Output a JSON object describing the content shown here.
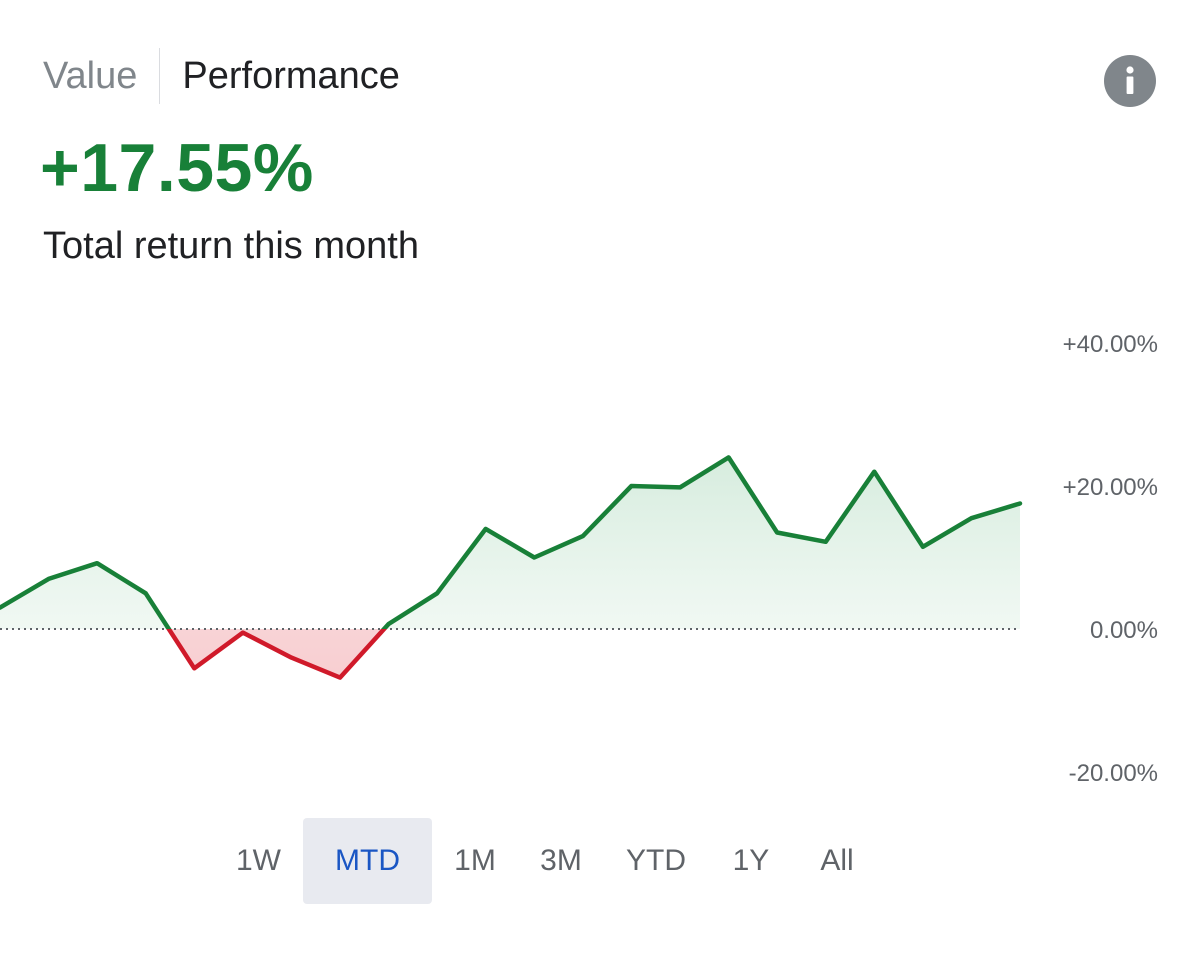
{
  "header": {
    "tabs": [
      {
        "label": "Value",
        "active": false
      },
      {
        "label": "Performance",
        "active": true
      }
    ],
    "info_icon": "info-icon"
  },
  "summary": {
    "return_value": "+17.55%",
    "caption": "Total return this month"
  },
  "colors": {
    "positive": "#188038",
    "negative": "#d01a2a",
    "positive_fill": "#e6f4ea",
    "negative_fill": "#fce8e6",
    "zero_line": "#5f6368",
    "selected_range": "#1a56c4"
  },
  "chart_data": {
    "type": "area",
    "x": [
      0,
      1,
      2,
      3,
      4,
      5,
      6,
      7,
      8,
      9,
      10,
      11,
      12,
      13,
      14,
      15,
      16,
      17,
      18,
      19,
      20,
      21
    ],
    "values": [
      3.0,
      7.0,
      9.2,
      5.0,
      -5.5,
      -0.5,
      -4.0,
      -6.8,
      0.7,
      5.0,
      14.0,
      10.0,
      13.0,
      20.0,
      19.8,
      24.0,
      13.5,
      12.2,
      22.0,
      11.5,
      15.5,
      17.55
    ],
    "yticks": [
      "+40.00%",
      "+20.00%",
      "0.00%",
      "-20.00%"
    ],
    "ytick_values": [
      40,
      20,
      0,
      -20
    ],
    "ylim": [
      -20,
      40
    ],
    "baseline": 0,
    "grid": false,
    "title": "",
    "xlabel": "",
    "ylabel": ""
  },
  "ranges": {
    "selected": "MTD",
    "items": [
      "1W",
      "MTD",
      "1M",
      "3M",
      "YTD",
      "1Y",
      "All"
    ]
  }
}
